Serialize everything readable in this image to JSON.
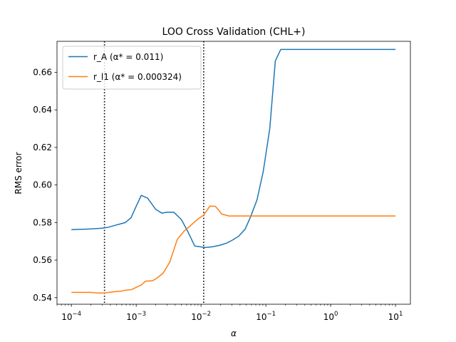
{
  "chart_data": {
    "type": "line",
    "title": "LOO Cross Validation (CHL+)",
    "xlabel": "α",
    "ylabel": "RMS error",
    "xscale": "log",
    "xlim": [
      6e-05,
      17
    ],
    "ylim": [
      0.5365,
      0.6765
    ],
    "xticks": [
      {
        "value": 0.0001,
        "base": "10",
        "exp": "−4"
      },
      {
        "value": 0.001,
        "base": "10",
        "exp": "−3"
      },
      {
        "value": 0.01,
        "base": "10",
        "exp": "−2"
      },
      {
        "value": 0.1,
        "base": "10",
        "exp": "−1"
      },
      {
        "value": 1,
        "base": "10",
        "exp": "0"
      },
      {
        "value": 10,
        "base": "10",
        "exp": "1"
      }
    ],
    "yticks": [
      {
        "value": 0.54,
        "label": "0.54"
      },
      {
        "value": 0.56,
        "label": "0.56"
      },
      {
        "value": 0.58,
        "label": "0.58"
      },
      {
        "value": 0.6,
        "label": "0.60"
      },
      {
        "value": 0.62,
        "label": "0.62"
      },
      {
        "value": 0.64,
        "label": "0.64"
      },
      {
        "value": 0.66,
        "label": "0.66"
      }
    ],
    "grid": false,
    "legend_position": "top-left",
    "vlines": [
      {
        "x": 0.000324,
        "style": "dotted",
        "color": "#000000"
      },
      {
        "x": 0.011,
        "style": "dotted",
        "color": "#000000"
      }
    ],
    "series": [
      {
        "name": "r_A",
        "optimum_label": "(α* = 0.011)",
        "color": "#1f77b4",
        "points": [
          [
            0.0001,
            0.5762
          ],
          [
            0.00013,
            0.5764
          ],
          [
            0.00017,
            0.5765
          ],
          [
            0.00023,
            0.5767
          ],
          [
            0.0003,
            0.577
          ],
          [
            0.00037,
            0.5775
          ],
          [
            0.00047,
            0.5785
          ],
          [
            0.00053,
            0.579
          ],
          [
            0.00068,
            0.58
          ],
          [
            0.00083,
            0.5825
          ],
          [
            0.001,
            0.5887
          ],
          [
            0.0012,
            0.5945
          ],
          [
            0.0015,
            0.593
          ],
          [
            0.002,
            0.587
          ],
          [
            0.0025,
            0.585
          ],
          [
            0.003,
            0.5855
          ],
          [
            0.0038,
            0.5855
          ],
          [
            0.005,
            0.5815
          ],
          [
            0.0063,
            0.575
          ],
          [
            0.008,
            0.5675
          ],
          [
            0.0115,
            0.5667
          ],
          [
            0.015,
            0.5671
          ],
          [
            0.02,
            0.568
          ],
          [
            0.025,
            0.5691
          ],
          [
            0.03,
            0.5705
          ],
          [
            0.038,
            0.5727
          ],
          [
            0.048,
            0.5765
          ],
          [
            0.058,
            0.583
          ],
          [
            0.073,
            0.592
          ],
          [
            0.091,
            0.607
          ],
          [
            0.115,
            0.63
          ],
          [
            0.14,
            0.666
          ],
          [
            0.17,
            0.6722
          ],
          [
            0.25,
            0.6722
          ],
          [
            1,
            0.6722
          ],
          [
            10,
            0.6722
          ]
        ]
      },
      {
        "name": "r_l1",
        "optimum_label": "(α* = 0.000324)",
        "color": "#ff7f0e",
        "points": [
          [
            0.0001,
            0.5428
          ],
          [
            0.00015,
            0.5428
          ],
          [
            0.0002,
            0.5428
          ],
          [
            0.00025,
            0.5425
          ],
          [
            0.00032,
            0.5425
          ],
          [
            0.00042,
            0.543
          ],
          [
            0.0005,
            0.5433
          ],
          [
            0.0006,
            0.5435
          ],
          [
            0.00068,
            0.544
          ],
          [
            0.00085,
            0.5443
          ],
          [
            0.0012,
            0.5468
          ],
          [
            0.0014,
            0.5488
          ],
          [
            0.0018,
            0.549
          ],
          [
            0.0021,
            0.5505
          ],
          [
            0.0026,
            0.553
          ],
          [
            0.0033,
            0.559
          ],
          [
            0.0043,
            0.571
          ],
          [
            0.0055,
            0.5755
          ],
          [
            0.0068,
            0.5782
          ],
          [
            0.0087,
            0.5815
          ],
          [
            0.011,
            0.584
          ],
          [
            0.0137,
            0.5888
          ],
          [
            0.0167,
            0.5886
          ],
          [
            0.021,
            0.5845
          ],
          [
            0.027,
            0.5835
          ],
          [
            0.035,
            0.5835
          ],
          [
            0.1,
            0.5835
          ],
          [
            1,
            0.5835
          ],
          [
            10,
            0.5835
          ]
        ]
      }
    ]
  }
}
